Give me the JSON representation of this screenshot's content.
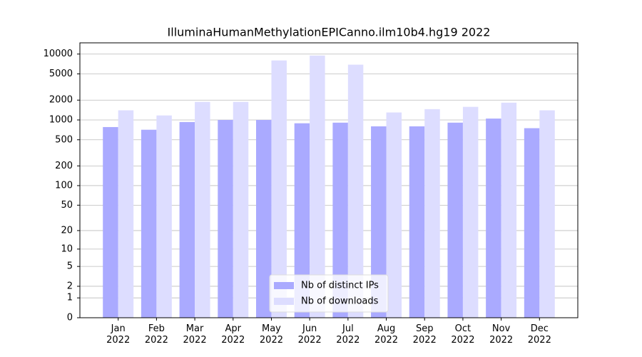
{
  "chart_data": {
    "type": "bar",
    "title": "IlluminaHumanMethylationEPICanno.ilm10b4.hg19 2022",
    "categories": [
      "Jan\n2022",
      "Feb\n2022",
      "Mar\n2022",
      "Apr\n2022",
      "May\n2022",
      "Jun\n2022",
      "Jul\n2022",
      "Aug\n2022",
      "Sep\n2022",
      "Oct\n2022",
      "Nov\n2022",
      "Dec\n2022"
    ],
    "series": [
      {
        "name": "Nb of distinct IPs",
        "color": "#aaaaff",
        "values": [
          780,
          710,
          930,
          1000,
          1000,
          890,
          910,
          800,
          800,
          910,
          1050,
          750
        ]
      },
      {
        "name": "Nb of downloads",
        "color": "#ddddff",
        "values": [
          1400,
          1170,
          1880,
          1880,
          8000,
          9500,
          6900,
          1300,
          1460,
          1580,
          1830,
          1400
        ]
      }
    ],
    "yscale": "log1p",
    "ylim": [
      0,
      14800
    ],
    "yticks": [
      0,
      1,
      2,
      5,
      10,
      20,
      50,
      100,
      200,
      500,
      1000,
      2000,
      5000,
      10000
    ],
    "grid": true,
    "legend": "lower center"
  }
}
